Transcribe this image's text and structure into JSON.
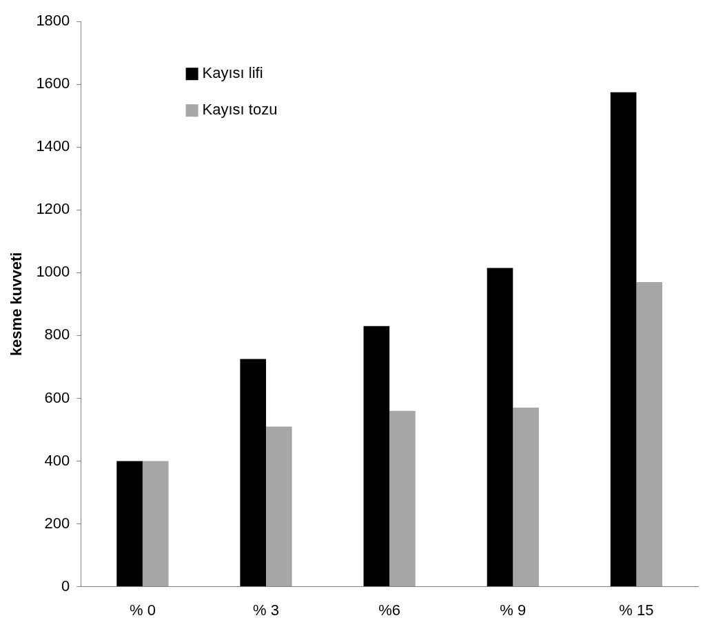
{
  "chart_data": {
    "type": "bar",
    "ylabel": "kesme kuvveti",
    "categories": [
      "% 0",
      "% 3",
      "%6",
      "% 9",
      "% 15"
    ],
    "series": [
      {
        "name": "Kayısı lifi",
        "color": "#000000",
        "values": [
          400,
          725,
          830,
          1015,
          1575
        ]
      },
      {
        "name": "Kayısı tozu",
        "color": "#a6a6a6",
        "values": [
          400,
          510,
          560,
          570,
          970
        ]
      }
    ],
    "ylim": [
      0,
      1800
    ],
    "yticks": [
      0,
      200,
      400,
      600,
      800,
      1000,
      1200,
      1400,
      1600,
      1800
    ],
    "grid": false,
    "legend": "top left"
  }
}
